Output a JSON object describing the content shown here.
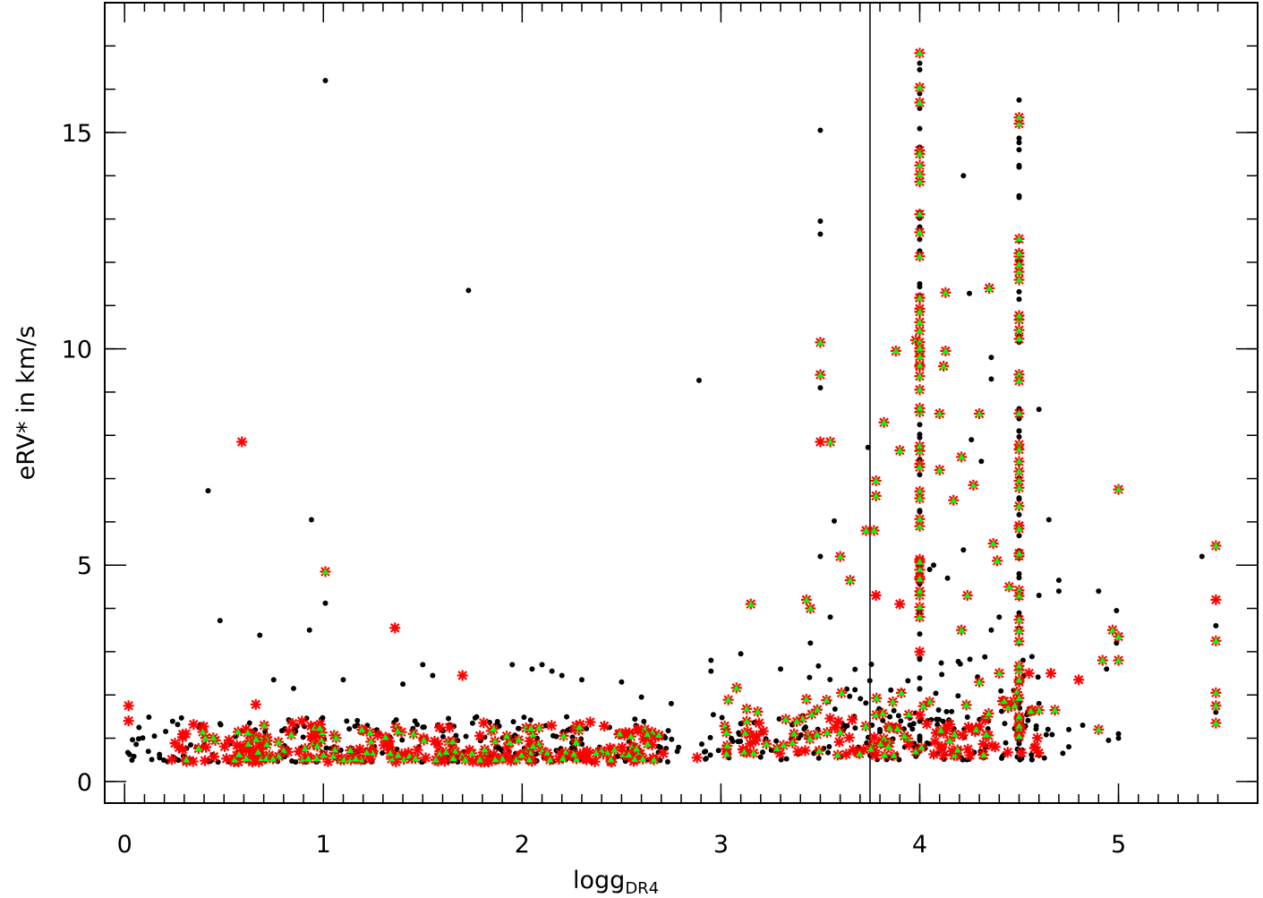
{
  "chart_data": {
    "type": "scatter",
    "title": "",
    "xlabel_main": "logg",
    "xlabel_sub": "DR4",
    "ylabel": "eRV* in km/s",
    "xlim": [
      -0.1,
      5.7
    ],
    "ylim": [
      -0.5,
      18.0
    ],
    "xticks": [
      0,
      1,
      2,
      3,
      4,
      5
    ],
    "xtick_labels": [
      "0",
      "1",
      "2",
      "3",
      "4",
      "5"
    ],
    "yticks": [
      0,
      5,
      10,
      15
    ],
    "ytick_labels": [
      "0",
      "5",
      "10",
      "15"
    ],
    "x_minor_step": 0.1,
    "y_minor_step": 1,
    "vline_x": 3.75,
    "grid": false,
    "colors": {
      "black": "#000000",
      "red": "#ff0000",
      "green": "#00ff00"
    },
    "series": [
      {
        "marker": "dot",
        "color": "#000000",
        "points": [
          [
            1.01,
            16.2
          ],
          [
            1.73,
            11.35
          ],
          [
            0.42,
            6.72
          ],
          [
            0.94,
            6.05
          ],
          [
            1.01,
            4.12
          ],
          [
            0.48,
            3.72
          ],
          [
            0.68,
            3.38
          ],
          [
            0.93,
            3.5
          ],
          [
            2.89,
            9.27
          ],
          [
            3.5,
            15.05
          ],
          [
            3.5,
            12.95
          ],
          [
            3.5,
            12.65
          ],
          [
            3.5,
            9.1
          ],
          [
            3.5,
            5.2
          ],
          [
            3.57,
            6.02
          ],
          [
            3.74,
            7.72
          ],
          [
            4.22,
            14.0
          ],
          [
            4.25,
            11.28
          ],
          [
            4.36,
            9.8
          ],
          [
            4.36,
            9.3
          ],
          [
            4.26,
            7.9
          ],
          [
            4.31,
            7.4
          ],
          [
            4.6,
            8.6
          ],
          [
            4.65,
            6.05
          ],
          [
            4.22,
            5.35
          ],
          [
            4.36,
            3.5
          ],
          [
            4.4,
            3.8
          ],
          [
            4.6,
            4.3
          ],
          [
            4.7,
            4.65
          ],
          [
            4.7,
            4.4
          ],
          [
            4.9,
            4.4
          ],
          [
            4.99,
            3.95
          ],
          [
            4.99,
            3.2
          ],
          [
            4.94,
            2.6
          ],
          [
            5.42,
            5.2
          ],
          [
            5.49,
            3.6
          ],
          [
            5.49,
            1.6
          ],
          [
            4.05,
            4.9
          ],
          [
            4.07,
            5.0
          ],
          [
            4.14,
            4.7
          ],
          [
            4.0,
            16.6
          ],
          [
            4.0,
            16.45
          ],
          [
            4.0,
            15.9
          ],
          [
            4.5,
            15.75
          ],
          [
            4.5,
            14.6
          ],
          [
            4.5,
            14.2
          ],
          [
            4.5,
            13.5
          ],
          [
            4.5,
            12.5
          ],
          [
            3.55,
            3.8
          ],
          [
            3.45,
            3.2
          ],
          [
            3.3,
            2.6
          ],
          [
            3.1,
            2.95
          ],
          [
            2.95,
            2.8
          ],
          [
            2.95,
            2.55
          ],
          [
            2.1,
            2.7
          ],
          [
            2.05,
            2.6
          ],
          [
            1.95,
            2.7
          ],
          [
            1.5,
            2.7
          ],
          [
            1.55,
            2.45
          ],
          [
            1.1,
            2.35
          ],
          [
            0.85,
            2.15
          ],
          [
            0.75,
            2.35
          ],
          [
            1.4,
            2.25
          ],
          [
            2.15,
            2.55
          ],
          [
            2.2,
            2.45
          ],
          [
            2.3,
            2.35
          ],
          [
            2.5,
            2.3
          ],
          [
            2.6,
            1.95
          ],
          [
            2.75,
            1.8
          ],
          [
            4.75,
            1.2
          ],
          [
            4.75,
            0.8
          ],
          [
            4.72,
            0.65
          ],
          [
            4.95,
            0.95
          ],
          [
            5.0,
            1.0
          ],
          [
            5.0,
            1.1
          ],
          [
            4.82,
            1.3
          ],
          [
            4.55,
            1.6
          ],
          [
            4.6,
            1.8
          ],
          [
            4.52,
            2.8
          ],
          [
            4.5,
            3.2
          ]
        ]
      },
      {
        "marker": "star",
        "color": "#ff0000",
        "points": [
          [
            0.59,
            7.85
          ],
          [
            1.36,
            3.55
          ],
          [
            1.7,
            2.45
          ],
          [
            2.88,
            0.55
          ],
          [
            0.02,
            1.75
          ],
          [
            0.02,
            1.4
          ],
          [
            0.66,
            1.78
          ],
          [
            4.55,
            2.5
          ],
          [
            4.66,
            2.5
          ],
          [
            3.5,
            7.85
          ],
          [
            3.9,
            4.1
          ],
          [
            5.49,
            4.2
          ],
          [
            4.5,
            2.3
          ],
          [
            4.8,
            2.35
          ],
          [
            4.0,
            3.0
          ],
          [
            3.78,
            4.3
          ]
        ]
      },
      {
        "marker": "starfill",
        "color": "#ff0000",
        "fill": "#00ff00",
        "points": [
          [
            1.01,
            4.85
          ],
          [
            3.5,
            10.15
          ],
          [
            3.5,
            9.4
          ],
          [
            3.55,
            7.85
          ],
          [
            3.15,
            4.1
          ],
          [
            3.43,
            4.2
          ],
          [
            3.45,
            4.0
          ],
          [
            3.6,
            5.2
          ],
          [
            3.65,
            4.65
          ],
          [
            3.73,
            5.8
          ],
          [
            3.77,
            5.8
          ],
          [
            3.78,
            6.95
          ],
          [
            3.78,
            6.6
          ],
          [
            3.82,
            8.3
          ],
          [
            3.9,
            7.65
          ],
          [
            3.88,
            9.95
          ],
          [
            3.98,
            10.2
          ],
          [
            4.1,
            8.5
          ],
          [
            4.12,
            9.6
          ],
          [
            4.13,
            11.3
          ],
          [
            4.13,
            9.95
          ],
          [
            4.1,
            7.2
          ],
          [
            4.17,
            6.5
          ],
          [
            4.21,
            7.5
          ],
          [
            4.27,
            6.85
          ],
          [
            4.3,
            8.5
          ],
          [
            4.35,
            11.4
          ],
          [
            4.37,
            5.5
          ],
          [
            4.39,
            5.1
          ],
          [
            4.21,
            3.5
          ],
          [
            4.24,
            4.3
          ],
          [
            4.45,
            4.5
          ],
          [
            4.5,
            6.95
          ],
          [
            4.97,
            3.5
          ],
          [
            5.0,
            6.75
          ],
          [
            5.0,
            3.35
          ],
          [
            5.0,
            2.8
          ],
          [
            4.92,
            2.8
          ],
          [
            5.49,
            5.45
          ],
          [
            5.49,
            3.25
          ],
          [
            5.49,
            2.05
          ],
          [
            5.49,
            1.75
          ],
          [
            5.49,
            1.35
          ],
          [
            4.9,
            1.2
          ],
          [
            4.6,
            1.65
          ],
          [
            4.68,
            1.65
          ],
          [
            4.4,
            2.5
          ],
          [
            4.3,
            2.3
          ]
        ]
      }
    ]
  }
}
